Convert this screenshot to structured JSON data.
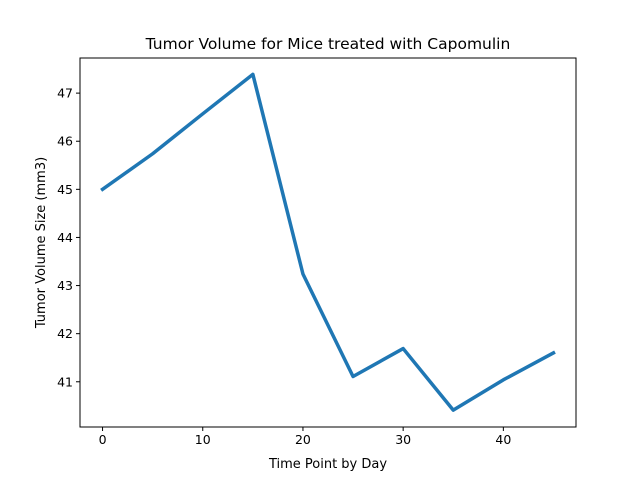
{
  "chart_data": {
    "type": "line",
    "title": "Tumor Volume for Mice treated with Capomulin",
    "xlabel": "Time Point by Day",
    "ylabel": "Tumor Volume Size (mm3)",
    "xlim": [
      -2.25,
      47.25
    ],
    "ylim": [
      40.06,
      47.73
    ],
    "xticks": [
      0,
      10,
      20,
      30,
      40
    ],
    "yticks": [
      41,
      42,
      43,
      44,
      45,
      46,
      47
    ],
    "grid": false,
    "series": [
      {
        "color": "#1f77b4",
        "x": [
          0,
          5,
          10,
          15,
          20,
          25,
          30,
          35,
          40,
          45
        ],
        "y": [
          45.0,
          45.74,
          46.57,
          47.39,
          43.24,
          41.11,
          41.69,
          40.41,
          41.04,
          41.6
        ]
      }
    ]
  }
}
